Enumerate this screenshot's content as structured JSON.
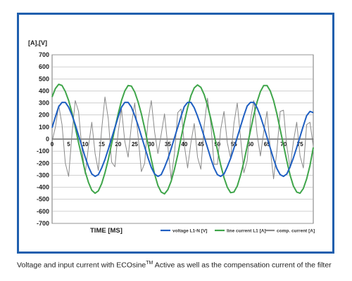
{
  "caption": {
    "before": "Voltage and input current with ECOsine",
    "tm": "TM",
    "after": " Active as well as the compensation current of the filter"
  },
  "chart_data": {
    "type": "line",
    "ylabel": "[A],[V]",
    "xlabel": "TIME [MS]",
    "ylim": [
      -700,
      700
    ],
    "yticks": [
      700,
      600,
      500,
      400,
      300,
      200,
      100,
      0,
      -100,
      -200,
      -300,
      -400,
      -500,
      -600,
      -700
    ],
    "xlim": [
      0,
      79
    ],
    "xticks": [
      0,
      5,
      10,
      15,
      20,
      25,
      30,
      35,
      40,
      45,
      50,
      55,
      60,
      65,
      70,
      75
    ],
    "grid": true,
    "legend_position": "bottom-right",
    "series": [
      {
        "name": "voltage L1-N [V]",
        "color": "#1f5fc2",
        "x": [
          0,
          1,
          2,
          3,
          4,
          5,
          6,
          7,
          8,
          9,
          10,
          11,
          12,
          13,
          14,
          15,
          16,
          17,
          18,
          19,
          20,
          21,
          22,
          23,
          24,
          25,
          26,
          27,
          28,
          29,
          30,
          31,
          32,
          33,
          34,
          35,
          36,
          37,
          38,
          39,
          40,
          41,
          42,
          43,
          44,
          45,
          46,
          47,
          48,
          49,
          50,
          51,
          52,
          53,
          54,
          55,
          56,
          57,
          58,
          59,
          60,
          61,
          62,
          63,
          64,
          65,
          66,
          67,
          68,
          69,
          70,
          71,
          72,
          73,
          74,
          75,
          76,
          77,
          78,
          79
        ],
        "y": [
          95,
          185,
          270,
          305,
          305,
          265,
          200,
          120,
          30,
          -60,
          -150,
          -230,
          -290,
          -310,
          -295,
          -240,
          -170,
          -85,
          5,
          95,
          185,
          265,
          305,
          305,
          265,
          195,
          115,
          25,
          -65,
          -155,
          -235,
          -290,
          -310,
          -295,
          -235,
          -165,
          -80,
          10,
          100,
          190,
          270,
          305,
          305,
          260,
          190,
          110,
          20,
          -70,
          -160,
          -240,
          -295,
          -310,
          -290,
          -230,
          -160,
          -75,
          15,
          105,
          195,
          275,
          305,
          305,
          260,
          190,
          105,
          15,
          -75,
          -165,
          -245,
          -295,
          -310,
          -290,
          -230,
          -155,
          -70,
          20,
          110,
          195,
          230,
          220
        ]
      },
      {
        "name": "line current L1 [A]",
        "color": "#3fa54a",
        "x": [
          0,
          1,
          2,
          3,
          4,
          5,
          6,
          7,
          8,
          9,
          10,
          11,
          12,
          13,
          14,
          15,
          16,
          17,
          18,
          19,
          20,
          21,
          22,
          23,
          24,
          25,
          26,
          27,
          28,
          29,
          30,
          31,
          32,
          33,
          34,
          35,
          36,
          37,
          38,
          39,
          40,
          41,
          42,
          43,
          44,
          45,
          46,
          47,
          48,
          49,
          50,
          51,
          52,
          53,
          54,
          55,
          56,
          57,
          58,
          59,
          60,
          61,
          62,
          63,
          64,
          65,
          66,
          67,
          68,
          69,
          70,
          71,
          72,
          73,
          74,
          75,
          76,
          77,
          78,
          79
        ],
        "y": [
          350,
          420,
          455,
          445,
          395,
          320,
          220,
          100,
          -30,
          -150,
          -270,
          -360,
          -425,
          -450,
          -430,
          -370,
          -280,
          -170,
          -40,
          90,
          210,
          320,
          400,
          445,
          440,
          390,
          310,
          210,
          90,
          -40,
          -170,
          -290,
          -385,
          -440,
          -455,
          -420,
          -350,
          -250,
          -130,
          10,
          140,
          260,
          360,
          425,
          450,
          430,
          370,
          280,
          170,
          40,
          -90,
          -215,
          -320,
          -400,
          -445,
          -440,
          -390,
          -300,
          -190,
          -60,
          70,
          200,
          310,
          395,
          445,
          445,
          400,
          320,
          210,
          80,
          -50,
          -180,
          -300,
          -390,
          -440,
          -450,
          -410,
          -330,
          -220,
          -70
        ]
      },
      {
        "name": "comp. current [A]",
        "color": "#8a8a8a",
        "x": [
          0,
          1,
          2,
          3,
          4,
          5,
          6,
          7,
          8,
          9,
          10,
          11,
          12,
          13,
          14,
          15,
          16,
          17,
          18,
          19,
          20,
          21,
          22,
          23,
          24,
          25,
          26,
          27,
          28,
          29,
          30,
          31,
          32,
          33,
          34,
          35,
          36,
          37,
          38,
          39,
          40,
          41,
          42,
          43,
          44,
          45,
          46,
          47,
          48,
          49,
          50,
          51,
          52,
          53,
          54,
          55,
          56,
          57,
          58,
          59,
          60,
          61,
          62,
          63,
          64,
          65,
          66,
          67,
          68,
          69,
          70,
          71,
          72,
          73,
          74,
          75,
          76,
          77,
          78,
          79
        ],
        "y": [
          -20,
          100,
          280,
          120,
          -200,
          -310,
          40,
          320,
          230,
          -80,
          -290,
          -60,
          140,
          -120,
          -260,
          80,
          350,
          170,
          -190,
          -230,
          60,
          250,
          -20,
          -150,
          120,
          300,
          30,
          -270,
          -200,
          150,
          320,
          60,
          -120,
          40,
          210,
          -60,
          -330,
          -120,
          220,
          250,
          -50,
          -240,
          -30,
          130,
          -150,
          -250,
          110,
          340,
          130,
          -210,
          -210,
          80,
          230,
          -30,
          -160,
          130,
          300,
          10,
          -280,
          -180,
          160,
          320,
          40,
          -140,
          60,
          230,
          -80,
          -330,
          -100,
          230,
          240,
          -60,
          -240,
          -20,
          140,
          -140,
          -240,
          120,
          140,
          -60
        ]
      }
    ]
  }
}
